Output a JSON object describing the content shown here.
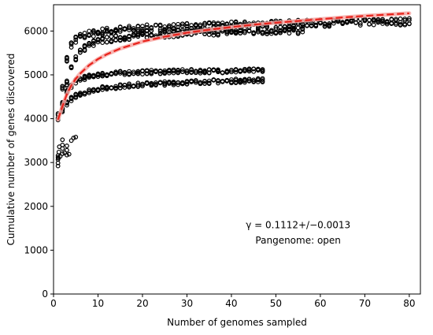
{
  "chart_data": {
    "type": "scatter",
    "title": "",
    "xlabel": "Number of genomes sampled",
    "ylabel": "Cumulative number of genes discovered",
    "xlim": [
      0,
      82.5
    ],
    "ylim": [
      0,
      6600
    ],
    "x_ticks": [
      0,
      10,
      20,
      30,
      40,
      50,
      60,
      70,
      80
    ],
    "y_ticks": [
      0,
      1000,
      2000,
      3000,
      4000,
      5000,
      6000
    ],
    "grid": false,
    "legend": "none",
    "annotation": {
      "line1": "γ = 0.1112+/−0.0013",
      "line2": "Pangenome: open",
      "x": 55,
      "y1": 1500,
      "y2": 1150
    },
    "series": [
      {
        "kind": "scatter-curve",
        "marker_color": "#000000",
        "start_x": 1,
        "end_x": 80,
        "x": [
          1,
          1.5,
          2,
          2.5,
          3,
          3.5,
          4,
          5,
          6,
          7,
          8,
          10,
          12,
          15,
          20,
          25,
          30,
          40,
          50,
          60,
          70,
          80
        ],
        "y": [
          4050,
          4300,
          4700,
          5050,
          5350,
          5550,
          5700,
          5800,
          5860,
          5900,
          5930,
          5970,
          6000,
          6030,
          6060,
          6080,
          6100,
          6130,
          6160,
          6180,
          6200,
          6215
        ],
        "spread": 80
      },
      {
        "kind": "scatter-curve",
        "marker_color": "#000000",
        "start_x": 2,
        "end_x": 56,
        "x": [
          2,
          3,
          4,
          5,
          6,
          8,
          10,
          15,
          20,
          30,
          40,
          50,
          56
        ],
        "y": [
          4300,
          4800,
          5150,
          5400,
          5550,
          5680,
          5760,
          5850,
          5900,
          5950,
          5980,
          6000,
          6005
        ],
        "spread": 70
      },
      {
        "kind": "scatter-curve",
        "marker_color": "#000000",
        "start_x": 2,
        "end_x": 47,
        "x": [
          2,
          3,
          4,
          5,
          6,
          8,
          10,
          15,
          20,
          30,
          40,
          47
        ],
        "y": [
          4350,
          4600,
          4750,
          4850,
          4900,
          4960,
          5000,
          5040,
          5060,
          5080,
          5090,
          5100
        ],
        "spread": 45
      },
      {
        "kind": "scatter-curve",
        "marker_color": "#000000",
        "start_x": 2,
        "end_x": 47,
        "x": [
          2,
          3,
          4,
          5,
          6,
          8,
          10,
          15,
          20,
          30,
          40,
          47
        ],
        "y": [
          4200,
          4350,
          4450,
          4520,
          4570,
          4630,
          4680,
          4740,
          4780,
          4830,
          4860,
          4880
        ],
        "spread": 45
      },
      {
        "kind": "points",
        "marker_color": "#000000",
        "x": [
          1,
          1,
          1,
          1,
          1,
          1.1,
          1.2,
          1.3,
          1.5,
          2,
          2,
          2,
          2,
          2.5,
          3,
          3,
          3,
          3.5,
          4,
          4.5,
          5
        ],
        "y": [
          2920,
          2990,
          3070,
          3120,
          3160,
          3100,
          3240,
          3360,
          3140,
          3200,
          3320,
          3400,
          3520,
          3220,
          3280,
          3380,
          3170,
          3190,
          3500,
          3560,
          3580
        ]
      },
      {
        "kind": "fit",
        "color": "#e8221b",
        "band_color": "#f7a8a5",
        "x": [
          1,
          2,
          3,
          4,
          5,
          6,
          8,
          10,
          12,
          15,
          20,
          25,
          30,
          35,
          40,
          45,
          50,
          55,
          60,
          65,
          70,
          75,
          80
        ],
        "y": [
          3980,
          4280,
          4560,
          4760,
          4910,
          5030,
          5220,
          5360,
          5470,
          5600,
          5760,
          5870,
          5960,
          6030,
          6090,
          6145,
          6190,
          6230,
          6270,
          6310,
          6345,
          6375,
          6405
        ]
      }
    ]
  }
}
